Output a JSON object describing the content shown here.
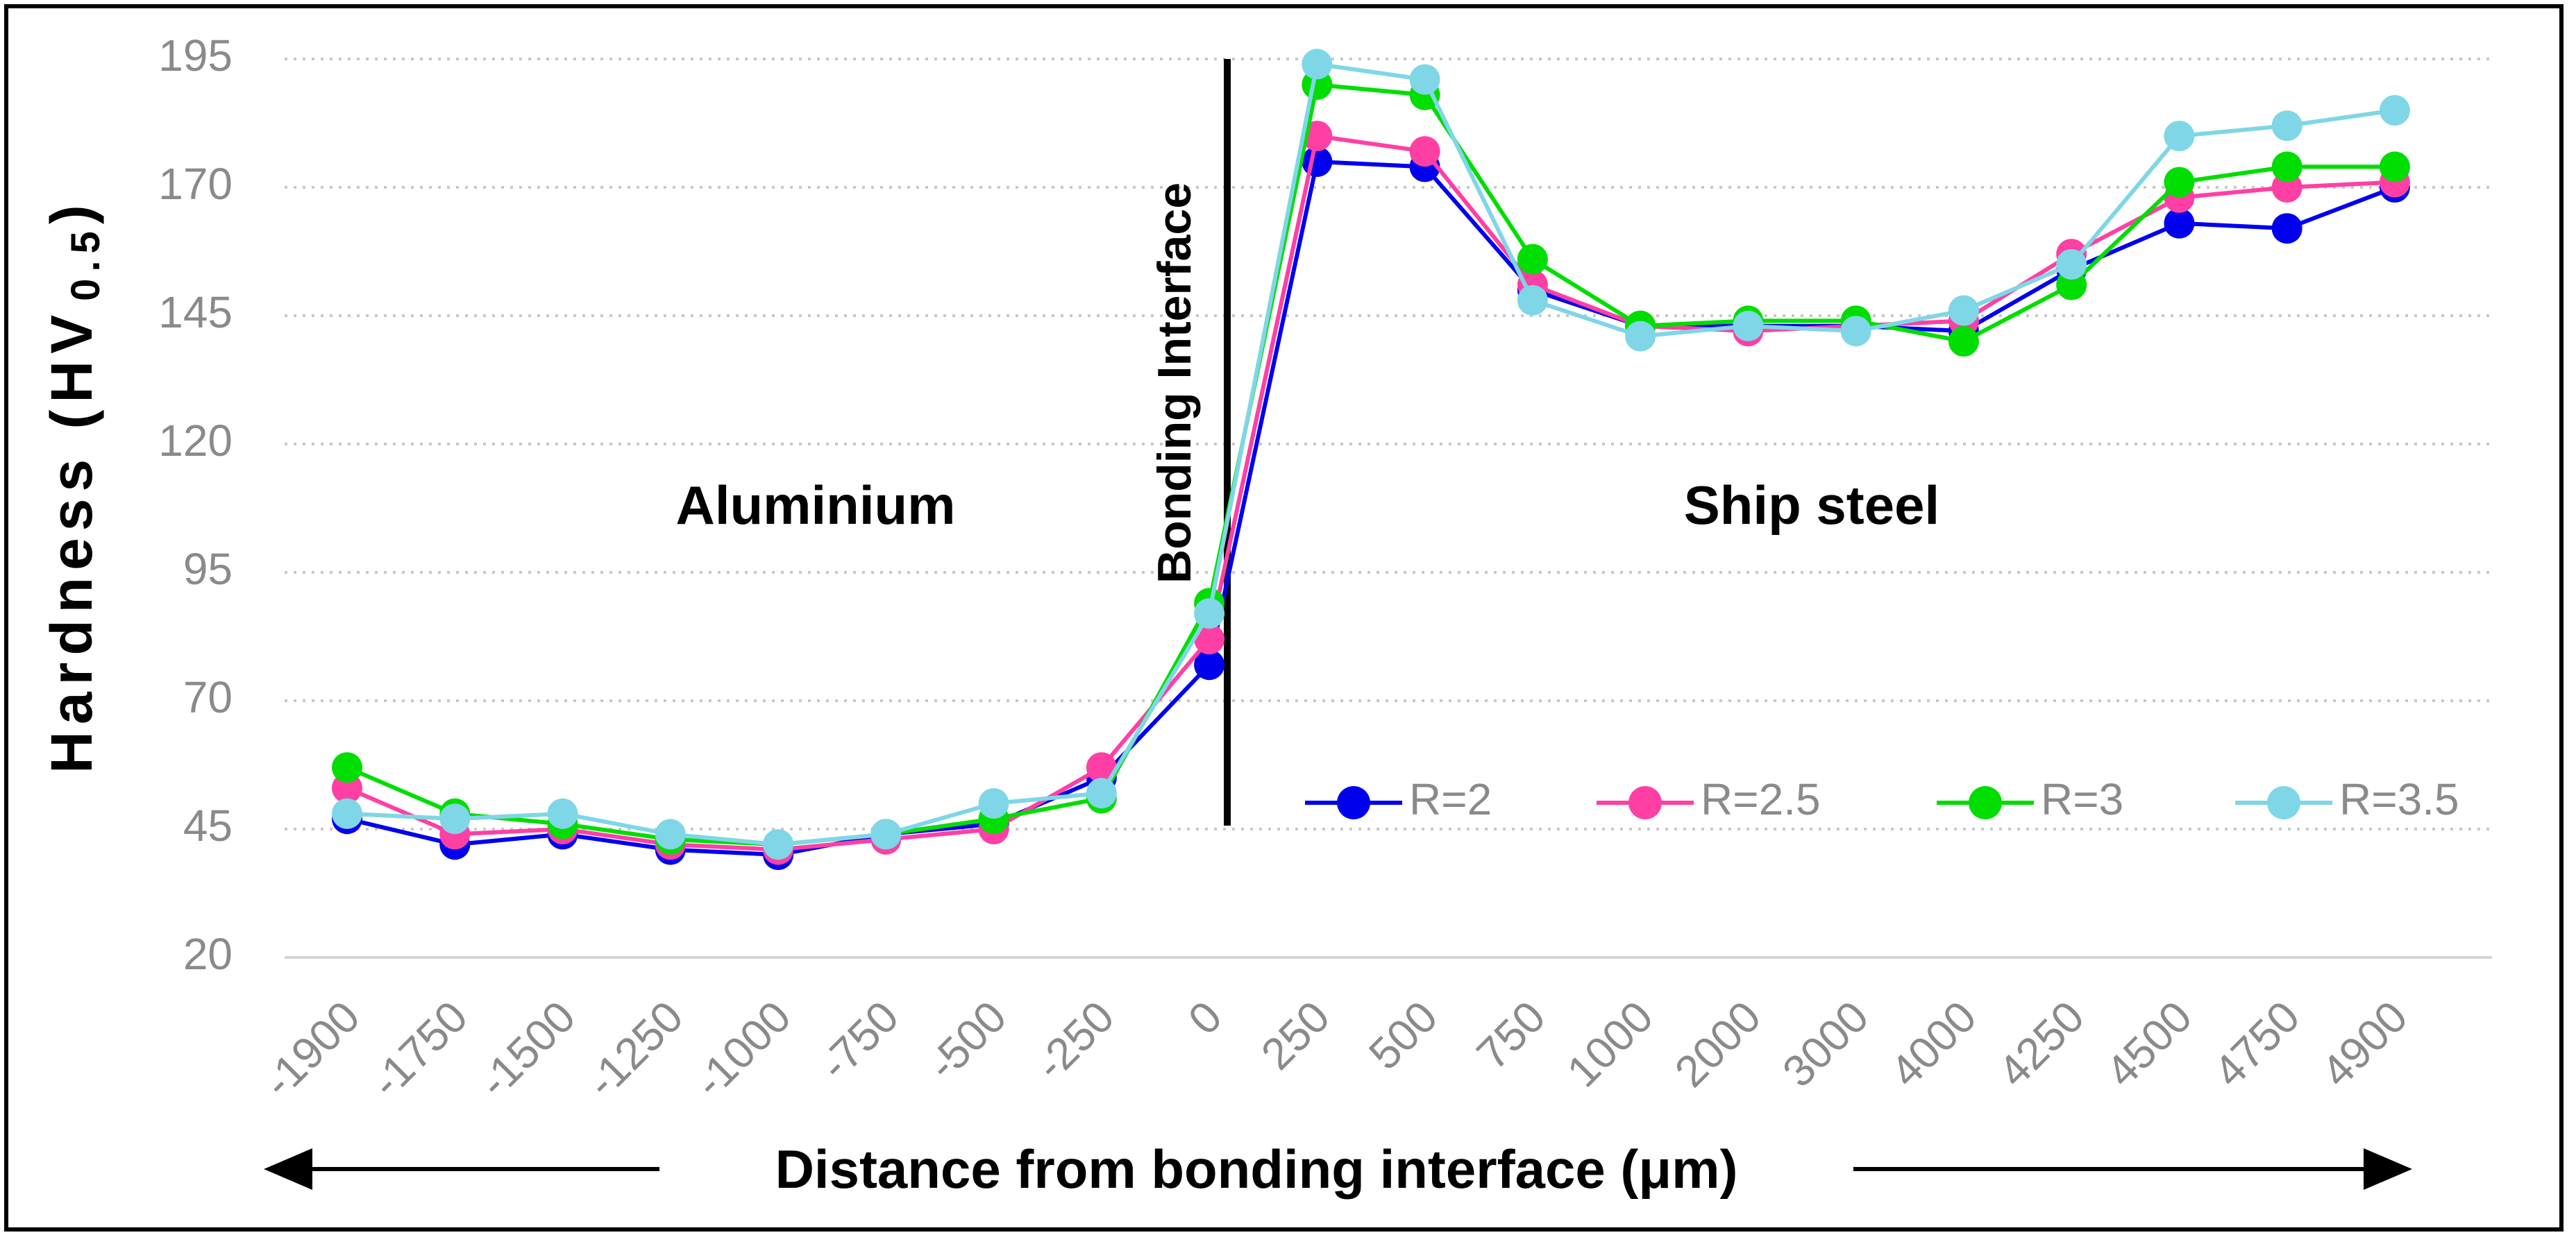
{
  "chart_data": {
    "type": "line",
    "ylabel": "Hardness (HV",
    "ylabel_sub": "0.5",
    "ylabel_close": ")",
    "xlabel": "Distance from bonding interface (μm)",
    "ylim": [
      20,
      195
    ],
    "yticks": [
      20,
      45,
      70,
      95,
      120,
      145,
      170,
      195
    ],
    "grid": true,
    "legend_position": "bottom-right",
    "categories": [
      "-1900",
      "-1750",
      "-1500",
      "-1250",
      "-1000",
      "-750",
      "-500",
      "-250",
      "0",
      "250",
      "500",
      "750",
      "1000",
      "2000",
      "3000",
      "4000",
      "4250",
      "4500",
      "4750",
      "4900"
    ],
    "series": [
      {
        "name": "R=2",
        "color": "#0000ee",
        "values": [
          47,
          42,
          44,
          41,
          40,
          44,
          46,
          55,
          77,
          175,
          174,
          150,
          143,
          143,
          143,
          142,
          154,
          163,
          162,
          170
        ]
      },
      {
        "name": "R=2.5",
        "color": "#ff3fa4",
        "values": [
          53,
          44,
          45,
          42,
          41,
          43,
          45,
          57,
          82,
          180,
          177,
          151,
          143,
          142,
          143,
          144,
          157,
          168,
          170,
          171
        ]
      },
      {
        "name": "R=3",
        "color": "#00dd00",
        "values": [
          57,
          48,
          46,
          43,
          42,
          44,
          47,
          51,
          89,
          190,
          188,
          156,
          143,
          144,
          144,
          140,
          151,
          171,
          174,
          174
        ]
      },
      {
        "name": "R=3.5",
        "color": "#7fd6e6",
        "values": [
          48,
          47,
          48,
          44,
          42,
          44,
          50,
          52,
          87,
          194,
          191,
          148,
          141,
          143,
          142,
          146,
          155,
          180,
          182,
          185
        ]
      }
    ],
    "annotations": {
      "interface": "Bonding Interface",
      "left_region": "Aluminium",
      "right_region": "Ship steel"
    }
  }
}
